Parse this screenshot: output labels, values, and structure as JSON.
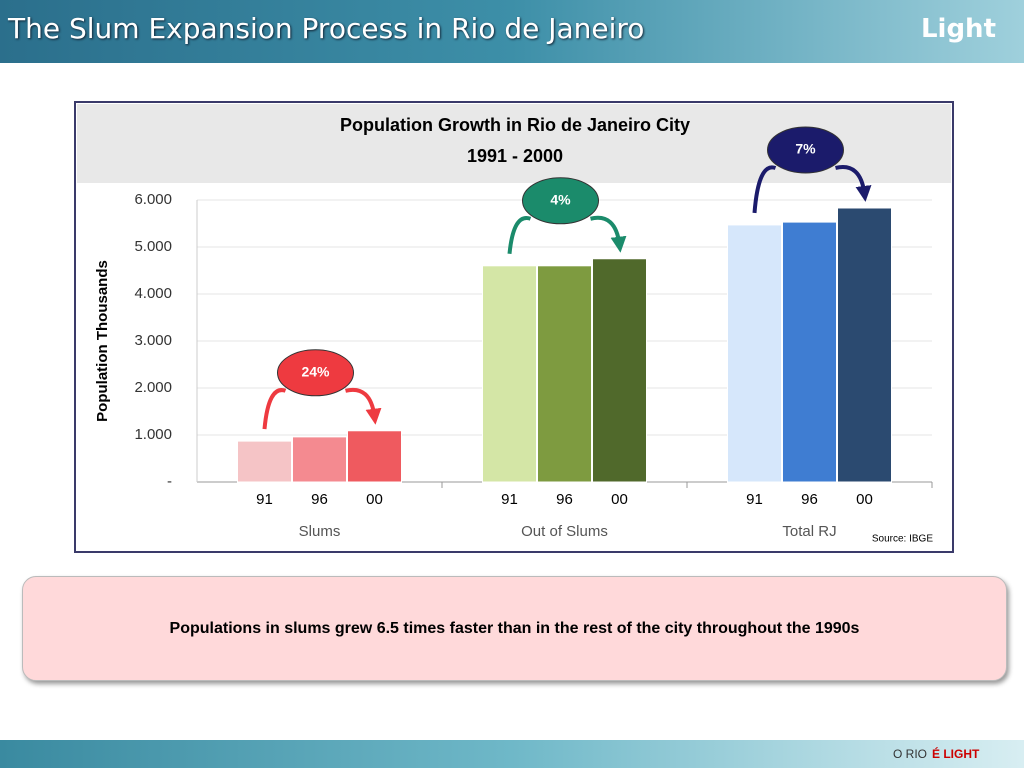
{
  "header": {
    "title": "The Slum Expansion Process in Rio de Janeiro",
    "logo": "Light"
  },
  "chart_data": {
    "type": "bar",
    "title": "Population Growth in Rio de Janeiro City",
    "subtitle": "1991 - 2000",
    "y_label": "Population Thousands",
    "source": "Source: IBGE",
    "categories": [
      "Slums",
      "Out of Slums",
      "Total RJ"
    ],
    "groups": [
      {
        "labels": [
          "91",
          "96",
          "00"
        ],
        "values": [
          870,
          960,
          1090
        ],
        "colors": [
          "#f5c4c6",
          "#f48a90",
          "#ef5a5f"
        ],
        "annotation": "24%",
        "annotation_color": "#ee3a40"
      },
      {
        "labels": [
          "91",
          "96",
          "00"
        ],
        "values": [
          4600,
          4600,
          4750
        ],
        "colors": [
          "#d4e6a6",
          "#7e9b40",
          "#50692b"
        ],
        "annotation": "4%",
        "annotation_color": "#1b8b6b"
      },
      {
        "labels": [
          "91",
          "96",
          "00"
        ],
        "values": [
          5470,
          5530,
          5830
        ],
        "colors": [
          "#d6e7fb",
          "#3f7dd2",
          "#2b4a70"
        ],
        "annotation": "7%",
        "annotation_color": "#1b1b6b"
      }
    ],
    "ylim": [
      0,
      6000
    ],
    "yticks": [
      {
        "value": 0,
        "label": "-"
      },
      {
        "value": 1000,
        "label": "1.000"
      },
      {
        "value": 2000,
        "label": "2.000"
      },
      {
        "value": 3000,
        "label": "3.000"
      },
      {
        "value": 4000,
        "label": "4.000"
      },
      {
        "value": 5000,
        "label": "5.000"
      },
      {
        "value": 6000,
        "label": "6.000"
      }
    ],
    "grid": true
  },
  "callout": {
    "text": "Populations in slums grew 6.5 times faster than in the rest of the city throughout the 1990s"
  },
  "footer": {
    "prefix": "O RIO",
    "tagline": "É LIGHT"
  }
}
